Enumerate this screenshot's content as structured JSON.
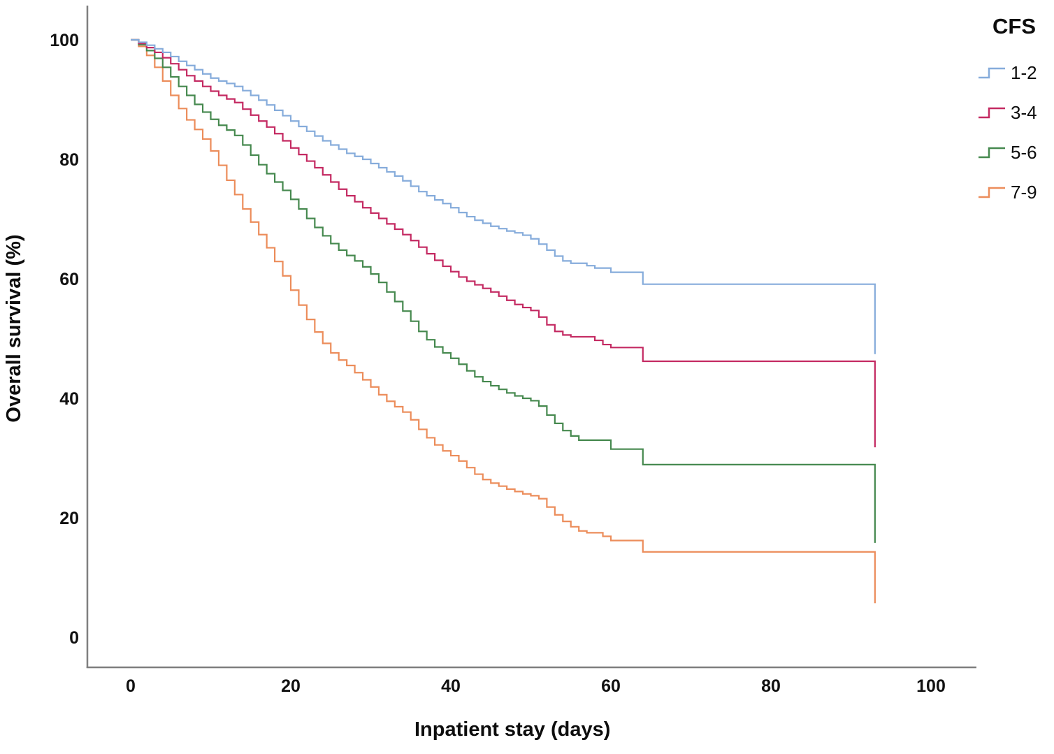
{
  "figure": {
    "background": "#ffffff",
    "axis_color": "#7f7f7f",
    "text_color": "#111111"
  },
  "chart_data": {
    "type": "line",
    "subtype": "kaplan-meier-step-curves",
    "title": "",
    "xlabel": "Inpatient stay (days)",
    "ylabel": "Overall survival (%)",
    "x_ticks": [
      0,
      20,
      40,
      60,
      80,
      100
    ],
    "y_ticks": [
      0,
      20,
      40,
      60,
      80,
      100
    ],
    "xlim": [
      -5.4,
      105.8
    ],
    "ylim": [
      -6.7,
      105.6
    ],
    "grid": false,
    "legend": {
      "title": "CFS",
      "position": "outside-top-right"
    },
    "series": [
      {
        "name": "7-9",
        "color": "#EC8D5B",
        "points": [
          [
            0,
            100
          ],
          [
            1,
            98.9
          ],
          [
            2,
            97.4
          ],
          [
            3,
            95.4
          ],
          [
            4,
            93.1
          ],
          [
            5,
            90.7
          ],
          [
            6,
            88.5
          ],
          [
            7,
            86.6
          ],
          [
            8,
            85.0
          ],
          [
            9,
            83.4
          ],
          [
            10,
            81.4
          ],
          [
            11,
            79.0
          ],
          [
            12,
            76.5
          ],
          [
            13,
            74.1
          ],
          [
            14,
            71.7
          ],
          [
            15,
            69.5
          ],
          [
            16,
            67.4
          ],
          [
            17,
            65.2
          ],
          [
            18,
            62.9
          ],
          [
            19,
            60.5
          ],
          [
            20,
            58.1
          ],
          [
            21,
            55.6
          ],
          [
            22,
            53.2
          ],
          [
            23,
            51.1
          ],
          [
            24,
            49.2
          ],
          [
            25,
            47.6
          ],
          [
            26,
            46.4
          ],
          [
            27,
            45.5
          ],
          [
            28,
            44.3
          ],
          [
            29,
            43.1
          ],
          [
            30,
            41.9
          ],
          [
            31,
            40.6
          ],
          [
            32,
            39.5
          ],
          [
            33,
            38.6
          ],
          [
            34,
            37.7
          ],
          [
            35,
            36.4
          ],
          [
            36,
            34.8
          ],
          [
            37,
            33.4
          ],
          [
            38,
            32.2
          ],
          [
            39,
            31.2
          ],
          [
            40,
            30.4
          ],
          [
            41,
            29.5
          ],
          [
            42,
            28.4
          ],
          [
            43,
            27.3
          ],
          [
            44,
            26.4
          ],
          [
            45,
            25.8
          ],
          [
            46,
            25.3
          ],
          [
            47,
            24.8
          ],
          [
            48,
            24.4
          ],
          [
            49,
            24.0
          ],
          [
            50,
            23.7
          ],
          [
            51,
            23.2
          ],
          [
            52,
            21.8
          ],
          [
            53,
            20.5
          ],
          [
            54,
            19.4
          ],
          [
            55,
            18.5
          ],
          [
            56,
            17.8
          ],
          [
            57,
            17.5
          ],
          [
            59,
            16.9
          ],
          [
            60,
            16.2
          ],
          [
            64,
            14.3
          ],
          [
            93,
            5.7
          ]
        ]
      },
      {
        "name": "5-6",
        "color": "#46894F",
        "points": [
          [
            0,
            100
          ],
          [
            1,
            99.2
          ],
          [
            2,
            98.2
          ],
          [
            3,
            96.9
          ],
          [
            4,
            95.4
          ],
          [
            5,
            93.8
          ],
          [
            6,
            92.2
          ],
          [
            7,
            90.7
          ],
          [
            8,
            89.2
          ],
          [
            9,
            87.9
          ],
          [
            10,
            86.7
          ],
          [
            11,
            85.7
          ],
          [
            12,
            84.9
          ],
          [
            13,
            84.0
          ],
          [
            14,
            82.4
          ],
          [
            15,
            80.7
          ],
          [
            16,
            79.1
          ],
          [
            17,
            77.6
          ],
          [
            18,
            76.2
          ],
          [
            19,
            74.8
          ],
          [
            20,
            73.3
          ],
          [
            21,
            71.7
          ],
          [
            22,
            70.1
          ],
          [
            23,
            68.6
          ],
          [
            24,
            67.2
          ],
          [
            25,
            65.9
          ],
          [
            26,
            64.8
          ],
          [
            27,
            63.9
          ],
          [
            28,
            63.0
          ],
          [
            29,
            62.0
          ],
          [
            30,
            60.8
          ],
          [
            31,
            59.4
          ],
          [
            32,
            57.8
          ],
          [
            33,
            56.2
          ],
          [
            34,
            54.6
          ],
          [
            35,
            52.9
          ],
          [
            36,
            51.2
          ],
          [
            37,
            49.8
          ],
          [
            38,
            48.6
          ],
          [
            39,
            47.6
          ],
          [
            40,
            46.7
          ],
          [
            41,
            45.7
          ],
          [
            42,
            44.6
          ],
          [
            43,
            43.6
          ],
          [
            44,
            42.8
          ],
          [
            45,
            42.1
          ],
          [
            46,
            41.5
          ],
          [
            47,
            40.9
          ],
          [
            48,
            40.4
          ],
          [
            49,
            40.0
          ],
          [
            50,
            39.6
          ],
          [
            51,
            38.7
          ],
          [
            52,
            37.2
          ],
          [
            53,
            35.8
          ],
          [
            54,
            34.6
          ],
          [
            55,
            33.7
          ],
          [
            56,
            33.0
          ],
          [
            60,
            31.5
          ],
          [
            64,
            28.9
          ],
          [
            93,
            15.8
          ]
        ]
      },
      {
        "name": "3-4",
        "color": "#C42A62",
        "points": [
          [
            0,
            100
          ],
          [
            1,
            99.4
          ],
          [
            2,
            98.7
          ],
          [
            3,
            97.9
          ],
          [
            4,
            97.0
          ],
          [
            5,
            96.0
          ],
          [
            6,
            95.0
          ],
          [
            7,
            94.0
          ],
          [
            8,
            93.1
          ],
          [
            9,
            92.2
          ],
          [
            10,
            91.4
          ],
          [
            11,
            90.7
          ],
          [
            12,
            90.1
          ],
          [
            13,
            89.5
          ],
          [
            14,
            88.4
          ],
          [
            15,
            87.4
          ],
          [
            16,
            86.4
          ],
          [
            17,
            85.4
          ],
          [
            18,
            84.3
          ],
          [
            19,
            83.1
          ],
          [
            20,
            81.9
          ],
          [
            21,
            80.8
          ],
          [
            22,
            79.7
          ],
          [
            23,
            78.6
          ],
          [
            24,
            77.4
          ],
          [
            25,
            76.2
          ],
          [
            26,
            75.0
          ],
          [
            27,
            73.9
          ],
          [
            28,
            72.9
          ],
          [
            29,
            71.9
          ],
          [
            30,
            71.0
          ],
          [
            31,
            70.1
          ],
          [
            32,
            69.2
          ],
          [
            33,
            68.3
          ],
          [
            34,
            67.4
          ],
          [
            35,
            66.4
          ],
          [
            36,
            65.3
          ],
          [
            37,
            64.2
          ],
          [
            38,
            63.1
          ],
          [
            39,
            62.1
          ],
          [
            40,
            61.2
          ],
          [
            41,
            60.3
          ],
          [
            42,
            59.6
          ],
          [
            43,
            59.0
          ],
          [
            44,
            58.4
          ],
          [
            45,
            57.8
          ],
          [
            46,
            57.1
          ],
          [
            47,
            56.4
          ],
          [
            48,
            55.7
          ],
          [
            49,
            55.2
          ],
          [
            50,
            54.7
          ],
          [
            51,
            53.6
          ],
          [
            52,
            52.3
          ],
          [
            53,
            51.2
          ],
          [
            54,
            50.6
          ],
          [
            55,
            50.3
          ],
          [
            58,
            49.7
          ],
          [
            59,
            49.0
          ],
          [
            60,
            48.5
          ],
          [
            64,
            46.2
          ],
          [
            93,
            31.8
          ]
        ]
      },
      {
        "name": "1-2",
        "color": "#86ACDB",
        "points": [
          [
            0,
            100
          ],
          [
            1,
            99.6
          ],
          [
            2,
            99.1
          ],
          [
            3,
            98.5
          ],
          [
            4,
            97.9
          ],
          [
            5,
            97.2
          ],
          [
            6,
            96.4
          ],
          [
            7,
            95.7
          ],
          [
            8,
            95.0
          ],
          [
            9,
            94.3
          ],
          [
            10,
            93.6
          ],
          [
            11,
            93.1
          ],
          [
            12,
            92.7
          ],
          [
            13,
            92.2
          ],
          [
            14,
            91.5
          ],
          [
            15,
            90.7
          ],
          [
            16,
            89.9
          ],
          [
            17,
            89.1
          ],
          [
            18,
            88.2
          ],
          [
            19,
            87.3
          ],
          [
            20,
            86.4
          ],
          [
            21,
            85.5
          ],
          [
            22,
            84.7
          ],
          [
            23,
            83.9
          ],
          [
            24,
            83.1
          ],
          [
            25,
            82.4
          ],
          [
            26,
            81.7
          ],
          [
            27,
            81.0
          ],
          [
            28,
            80.5
          ],
          [
            29,
            80.0
          ],
          [
            30,
            79.3
          ],
          [
            31,
            78.6
          ],
          [
            32,
            77.9
          ],
          [
            33,
            77.2
          ],
          [
            34,
            76.4
          ],
          [
            35,
            75.5
          ],
          [
            36,
            74.6
          ],
          [
            37,
            73.9
          ],
          [
            38,
            73.2
          ],
          [
            39,
            72.6
          ],
          [
            40,
            71.9
          ],
          [
            41,
            71.1
          ],
          [
            42,
            70.4
          ],
          [
            43,
            69.8
          ],
          [
            44,
            69.3
          ],
          [
            45,
            68.8
          ],
          [
            46,
            68.4
          ],
          [
            47,
            68.0
          ],
          [
            48,
            67.7
          ],
          [
            49,
            67.3
          ],
          [
            50,
            66.7
          ],
          [
            51,
            65.8
          ],
          [
            52,
            64.8
          ],
          [
            53,
            63.8
          ],
          [
            54,
            63.0
          ],
          [
            55,
            62.6
          ],
          [
            57,
            62.2
          ],
          [
            58,
            61.8
          ],
          [
            60,
            61.1
          ],
          [
            64,
            59.1
          ],
          [
            93,
            47.4
          ]
        ]
      }
    ],
    "legend_order": [
      "1-2",
      "3-4",
      "5-6",
      "7-9"
    ]
  }
}
